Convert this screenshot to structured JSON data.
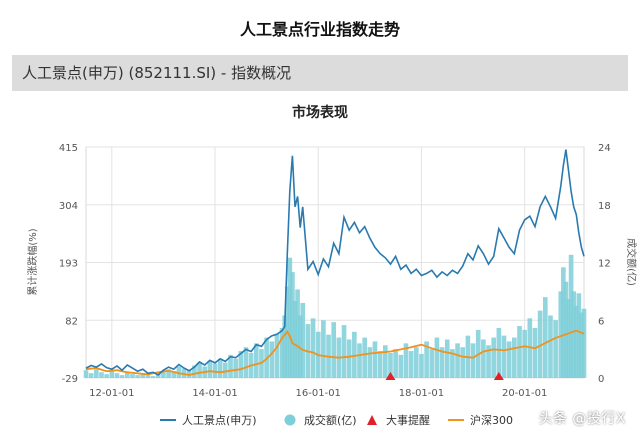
{
  "page": {
    "title": "人工景点行业指数走势",
    "header": "人工景点(申万) (852111.SI) - 指数概况",
    "watermark": "头条 @投行X"
  },
  "colors": {
    "index": "#2a7ab0",
    "volume": "#7ecfd8",
    "event": "#e0202a",
    "hs300": "#f0921c"
  },
  "chart_data": {
    "type": "line",
    "title": "市场表现",
    "ylabel_left": "累计涨跌幅(%)",
    "ylabel_right": "成交额(亿)",
    "ylim_left": [
      -29,
      415
    ],
    "ylim_right": [
      0,
      24
    ],
    "yticks_left": [
      415,
      304,
      193,
      82,
      -29
    ],
    "yticks_right": [
      24,
      18,
      12,
      6,
      0
    ],
    "xlim": [
      2011.5,
      2021.15
    ],
    "xticks": [
      {
        "value": 2012,
        "label": "12-01-01"
      },
      {
        "value": 2014,
        "label": "14-01-01"
      },
      {
        "value": 2016,
        "label": "16-01-01"
      },
      {
        "value": 2018,
        "label": "18-01-01"
      },
      {
        "value": 2020,
        "label": "20-01-01"
      }
    ],
    "legend": {
      "placement": "bottom",
      "entries": [
        "人工景点(申万)",
        "成交额(亿)",
        "大事提醒",
        "沪深300"
      ]
    },
    "series": [
      {
        "name": "人工景点(申万)",
        "kind": "line",
        "points": [
          [
            2011.5,
            -10
          ],
          [
            2011.6,
            -5
          ],
          [
            2011.7,
            -8
          ],
          [
            2011.8,
            -2
          ],
          [
            2011.9,
            -9
          ],
          [
            2012.0,
            -12
          ],
          [
            2012.1,
            -6
          ],
          [
            2012.2,
            -14
          ],
          [
            2012.3,
            -4
          ],
          [
            2012.4,
            -10
          ],
          [
            2012.5,
            -16
          ],
          [
            2012.6,
            -12
          ],
          [
            2012.7,
            -20
          ],
          [
            2012.8,
            -18
          ],
          [
            2012.9,
            -23
          ],
          [
            2013.0,
            -14
          ],
          [
            2013.1,
            -8
          ],
          [
            2013.2,
            -12
          ],
          [
            2013.3,
            -3
          ],
          [
            2013.4,
            -10
          ],
          [
            2013.5,
            -15
          ],
          [
            2013.6,
            -8
          ],
          [
            2013.7,
            2
          ],
          [
            2013.8,
            -4
          ],
          [
            2013.9,
            5
          ],
          [
            2014.0,
            0
          ],
          [
            2014.1,
            8
          ],
          [
            2014.2,
            3
          ],
          [
            2014.3,
            12
          ],
          [
            2014.4,
            10
          ],
          [
            2014.5,
            18
          ],
          [
            2014.6,
            26
          ],
          [
            2014.7,
            22
          ],
          [
            2014.8,
            35
          ],
          [
            2014.9,
            32
          ],
          [
            2015.0,
            45
          ],
          [
            2015.1,
            52
          ],
          [
            2015.2,
            55
          ],
          [
            2015.3,
            62
          ],
          [
            2015.35,
            70
          ],
          [
            2015.4,
            210
          ],
          [
            2015.45,
            330
          ],
          [
            2015.5,
            398
          ],
          [
            2015.55,
            300
          ],
          [
            2015.6,
            320
          ],
          [
            2015.65,
            260
          ],
          [
            2015.7,
            300
          ],
          [
            2015.8,
            180
          ],
          [
            2015.9,
            195
          ],
          [
            2016.0,
            170
          ],
          [
            2016.1,
            200
          ],
          [
            2016.2,
            185
          ],
          [
            2016.3,
            230
          ],
          [
            2016.4,
            210
          ],
          [
            2016.5,
            280
          ],
          [
            2016.6,
            255
          ],
          [
            2016.7,
            270
          ],
          [
            2016.8,
            250
          ],
          [
            2016.9,
            262
          ],
          [
            2017.0,
            240
          ],
          [
            2017.1,
            222
          ],
          [
            2017.2,
            210
          ],
          [
            2017.3,
            202
          ],
          [
            2017.4,
            190
          ],
          [
            2017.5,
            205
          ],
          [
            2017.6,
            180
          ],
          [
            2017.7,
            188
          ],
          [
            2017.8,
            172
          ],
          [
            2017.9,
            180
          ],
          [
            2018.0,
            168
          ],
          [
            2018.1,
            172
          ],
          [
            2018.2,
            178
          ],
          [
            2018.3,
            165
          ],
          [
            2018.4,
            175
          ],
          [
            2018.5,
            168
          ],
          [
            2018.6,
            178
          ],
          [
            2018.7,
            172
          ],
          [
            2018.8,
            186
          ],
          [
            2018.9,
            210
          ],
          [
            2019.0,
            198
          ],
          [
            2019.1,
            225
          ],
          [
            2019.2,
            210
          ],
          [
            2019.3,
            190
          ],
          [
            2019.4,
            205
          ],
          [
            2019.5,
            258
          ],
          [
            2019.6,
            240
          ],
          [
            2019.7,
            222
          ],
          [
            2019.8,
            210
          ],
          [
            2019.9,
            255
          ],
          [
            2020.0,
            275
          ],
          [
            2020.1,
            282
          ],
          [
            2020.2,
            262
          ],
          [
            2020.3,
            300
          ],
          [
            2020.4,
            320
          ],
          [
            2020.5,
            300
          ],
          [
            2020.6,
            278
          ],
          [
            2020.7,
            340
          ],
          [
            2020.75,
            380
          ],
          [
            2020.8,
            410
          ],
          [
            2020.85,
            370
          ],
          [
            2020.9,
            330
          ],
          [
            2020.95,
            300
          ],
          [
            2021.0,
            285
          ],
          [
            2021.05,
            250
          ],
          [
            2021.1,
            222
          ],
          [
            2021.15,
            205
          ]
        ]
      },
      {
        "name": "沪深300",
        "kind": "line",
        "points": [
          [
            2011.5,
            -12
          ],
          [
            2011.7,
            -10
          ],
          [
            2011.9,
            -16
          ],
          [
            2012.1,
            -14
          ],
          [
            2012.3,
            -18
          ],
          [
            2012.5,
            -20
          ],
          [
            2012.7,
            -22
          ],
          [
            2012.9,
            -18
          ],
          [
            2013.1,
            -15
          ],
          [
            2013.3,
            -20
          ],
          [
            2013.5,
            -23
          ],
          [
            2013.7,
            -19
          ],
          [
            2013.9,
            -16
          ],
          [
            2014.1,
            -18
          ],
          [
            2014.3,
            -15
          ],
          [
            2014.5,
            -12
          ],
          [
            2014.7,
            -5
          ],
          [
            2014.9,
            0
          ],
          [
            2015.0,
            8
          ],
          [
            2015.1,
            18
          ],
          [
            2015.2,
            30
          ],
          [
            2015.3,
            48
          ],
          [
            2015.4,
            60
          ],
          [
            2015.45,
            52
          ],
          [
            2015.5,
            38
          ],
          [
            2015.6,
            32
          ],
          [
            2015.7,
            25
          ],
          [
            2015.8,
            22
          ],
          [
            2015.9,
            20
          ],
          [
            2016.0,
            15
          ],
          [
            2016.2,
            12
          ],
          [
            2016.4,
            10
          ],
          [
            2016.6,
            12
          ],
          [
            2016.8,
            15
          ],
          [
            2017.0,
            18
          ],
          [
            2017.2,
            20
          ],
          [
            2017.4,
            22
          ],
          [
            2017.6,
            26
          ],
          [
            2017.8,
            30
          ],
          [
            2018.0,
            35
          ],
          [
            2018.2,
            28
          ],
          [
            2018.4,
            22
          ],
          [
            2018.6,
            18
          ],
          [
            2018.8,
            12
          ],
          [
            2019.0,
            10
          ],
          [
            2019.2,
            22
          ],
          [
            2019.4,
            26
          ],
          [
            2019.6,
            24
          ],
          [
            2019.8,
            28
          ],
          [
            2020.0,
            32
          ],
          [
            2020.2,
            28
          ],
          [
            2020.4,
            38
          ],
          [
            2020.6,
            48
          ],
          [
            2020.8,
            55
          ],
          [
            2021.0,
            62
          ],
          [
            2021.1,
            58
          ],
          [
            2021.15,
            56
          ]
        ]
      },
      {
        "name": "成交额(亿)",
        "kind": "bar",
        "y_axis": "right",
        "points": [
          [
            2011.5,
            0.8
          ],
          [
            2011.6,
            0.5
          ],
          [
            2011.7,
            0.9
          ],
          [
            2011.8,
            0.6
          ],
          [
            2011.9,
            0.4
          ],
          [
            2012.0,
            0.7
          ],
          [
            2012.1,
            0.5
          ],
          [
            2012.2,
            0.3
          ],
          [
            2012.3,
            0.6
          ],
          [
            2012.4,
            0.4
          ],
          [
            2012.5,
            0.3
          ],
          [
            2012.6,
            0.5
          ],
          [
            2012.7,
            0.3
          ],
          [
            2012.8,
            0.2
          ],
          [
            2012.9,
            0.4
          ],
          [
            2013.0,
            0.6
          ],
          [
            2013.1,
            0.9
          ],
          [
            2013.2,
            0.7
          ],
          [
            2013.3,
            1.2
          ],
          [
            2013.4,
            1.0
          ],
          [
            2013.5,
            0.8
          ],
          [
            2013.6,
            1.3
          ],
          [
            2013.7,
            1.6
          ],
          [
            2013.8,
            1.2
          ],
          [
            2013.9,
            1.8
          ],
          [
            2014.0,
            1.5
          ],
          [
            2014.1,
            2.0
          ],
          [
            2014.2,
            1.6
          ],
          [
            2014.3,
            2.4
          ],
          [
            2014.4,
            2.0
          ],
          [
            2014.5,
            2.8
          ],
          [
            2014.6,
            3.2
          ],
          [
            2014.7,
            2.6
          ],
          [
            2014.8,
            3.6
          ],
          [
            2014.9,
            3.0
          ],
          [
            2015.0,
            4.2
          ],
          [
            2015.1,
            3.8
          ],
          [
            2015.2,
            4.6
          ],
          [
            2015.3,
            5.2
          ],
          [
            2015.35,
            6.5
          ],
          [
            2015.4,
            9.5
          ],
          [
            2015.45,
            12.5
          ],
          [
            2015.5,
            11.0
          ],
          [
            2015.55,
            8.0
          ],
          [
            2015.6,
            9.2
          ],
          [
            2015.65,
            6.5
          ],
          [
            2015.7,
            7.8
          ],
          [
            2015.8,
            5.6
          ],
          [
            2015.9,
            6.2
          ],
          [
            2016.0,
            4.8
          ],
          [
            2016.1,
            6.0
          ],
          [
            2016.2,
            4.5
          ],
          [
            2016.3,
            5.8
          ],
          [
            2016.4,
            4.2
          ],
          [
            2016.5,
            5.5
          ],
          [
            2016.6,
            4.0
          ],
          [
            2016.7,
            4.8
          ],
          [
            2016.8,
            3.6
          ],
          [
            2016.9,
            4.2
          ],
          [
            2017.0,
            3.2
          ],
          [
            2017.1,
            3.8
          ],
          [
            2017.2,
            2.8
          ],
          [
            2017.3,
            3.4
          ],
          [
            2017.4,
            2.6
          ],
          [
            2017.5,
            3.0
          ],
          [
            2017.6,
            2.4
          ],
          [
            2017.7,
            3.6
          ],
          [
            2017.8,
            2.8
          ],
          [
            2017.9,
            3.2
          ],
          [
            2018.0,
            2.5
          ],
          [
            2018.1,
            3.8
          ],
          [
            2018.2,
            3.0
          ],
          [
            2018.3,
            4.2
          ],
          [
            2018.4,
            3.2
          ],
          [
            2018.5,
            4.0
          ],
          [
            2018.6,
            3.0
          ],
          [
            2018.7,
            3.6
          ],
          [
            2018.8,
            3.2
          ],
          [
            2018.9,
            4.4
          ],
          [
            2019.0,
            3.6
          ],
          [
            2019.1,
            5.0
          ],
          [
            2019.2,
            4.0
          ],
          [
            2019.3,
            3.4
          ],
          [
            2019.4,
            4.2
          ],
          [
            2019.5,
            5.2
          ],
          [
            2019.6,
            4.4
          ],
          [
            2019.7,
            3.8
          ],
          [
            2019.8,
            4.2
          ],
          [
            2019.9,
            5.4
          ],
          [
            2020.0,
            5.0
          ],
          [
            2020.1,
            6.2
          ],
          [
            2020.2,
            5.2
          ],
          [
            2020.3,
            7.0
          ],
          [
            2020.4,
            8.4
          ],
          [
            2020.5,
            6.5
          ],
          [
            2020.6,
            6.0
          ],
          [
            2020.7,
            9.0
          ],
          [
            2020.75,
            11.5
          ],
          [
            2020.8,
            10.0
          ],
          [
            2020.85,
            8.2
          ],
          [
            2020.9,
            12.8
          ],
          [
            2020.95,
            9.0
          ],
          [
            2021.0,
            7.5
          ],
          [
            2021.05,
            8.8
          ],
          [
            2021.1,
            6.8
          ],
          [
            2021.15,
            7.2
          ]
        ]
      },
      {
        "name": "大事提醒",
        "kind": "marker",
        "points": [
          2017.4,
          2019.5
        ]
      }
    ]
  }
}
